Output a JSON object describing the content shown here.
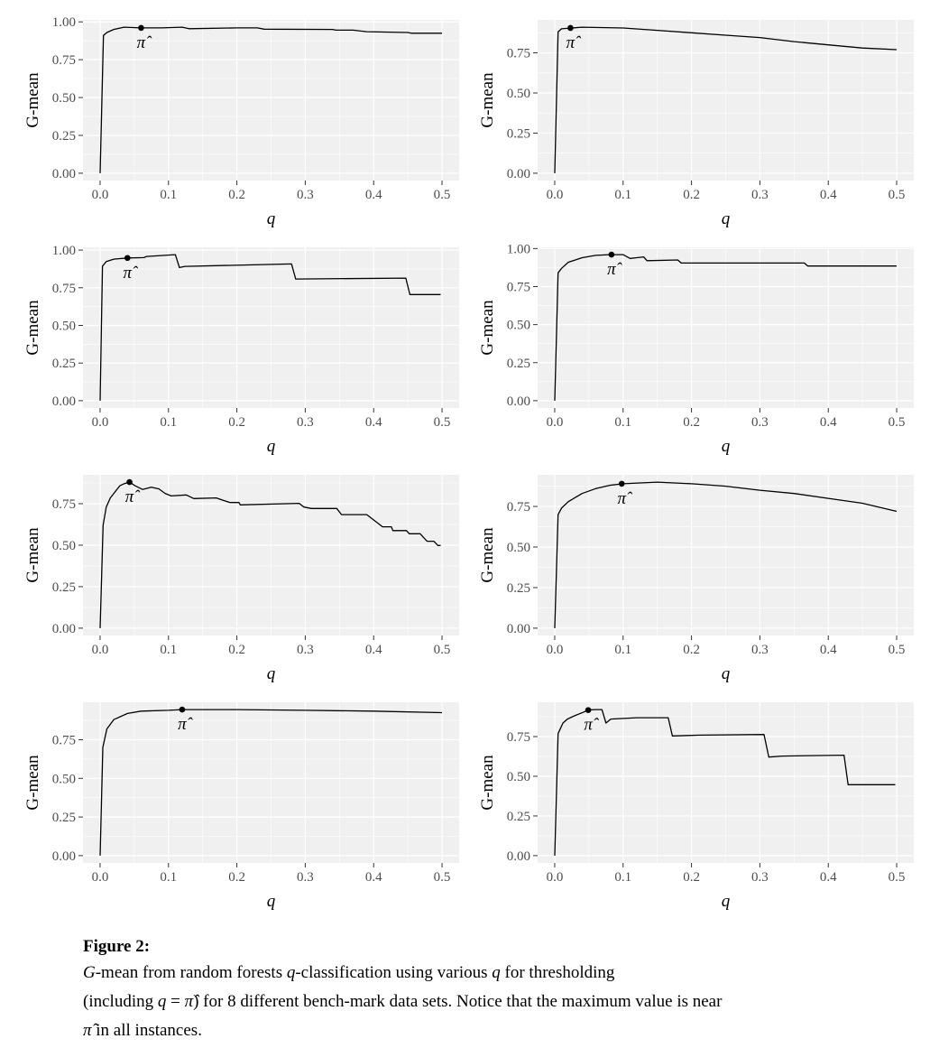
{
  "chart_data": [
    {
      "type": "line",
      "xlabel": "q",
      "ylabel": "G-mean",
      "xlim": [
        0,
        0.5
      ],
      "grid": true,
      "xticks": [
        "0.0",
        "0.1",
        "0.2",
        "0.3",
        "0.4",
        "0.5"
      ],
      "x": [
        0,
        0.005,
        0.01,
        0.02,
        0.035,
        0.06,
        0.09,
        0.12,
        0.13,
        0.2,
        0.23,
        0.24,
        0.34,
        0.345,
        0.37,
        0.39,
        0.45,
        0.455,
        0.5
      ],
      "y": [
        0,
        0.91,
        0.93,
        0.95,
        0.965,
        0.96,
        0.96,
        0.965,
        0.955,
        0.96,
        0.96,
        0.952,
        0.95,
        0.945,
        0.945,
        0.935,
        0.93,
        0.925,
        0.925
      ],
      "annotation": {
        "label": "π̂",
        "x": 0.06,
        "y": 0.96
      }
    },
    {
      "type": "line",
      "xlabel": "q",
      "ylabel": "G-mean",
      "xlim": [
        0,
        0.5
      ],
      "grid": true,
      "xticks": [
        "0.0",
        "0.1",
        "0.2",
        "0.3",
        "0.4",
        "0.5"
      ],
      "x": [
        0,
        0.005,
        0.01,
        0.025,
        0.04,
        0.1,
        0.15,
        0.2,
        0.25,
        0.3,
        0.35,
        0.4,
        0.45,
        0.5
      ],
      "y": [
        0,
        0.88,
        0.9,
        0.905,
        0.91,
        0.905,
        0.89,
        0.875,
        0.86,
        0.845,
        0.82,
        0.8,
        0.78,
        0.77
      ],
      "annotation": {
        "label": "π̂",
        "x": 0.023,
        "y": 0.905
      }
    },
    {
      "type": "line",
      "xlabel": "q",
      "ylabel": "G-mean",
      "xlim": [
        0,
        0.5
      ],
      "grid": true,
      "xticks": [
        "0.0",
        "0.1",
        "0.2",
        "0.3",
        "0.4",
        "0.5"
      ],
      "x": [
        0,
        0.0035,
        0.009,
        0.02,
        0.04,
        0.064,
        0.068,
        0.11,
        0.116,
        0.124,
        0.28,
        0.286,
        0.447,
        0.453,
        0.498
      ],
      "y": [
        0,
        0.894,
        0.924,
        0.94,
        0.948,
        0.95,
        0.958,
        0.97,
        0.884,
        0.892,
        0.908,
        0.808,
        0.814,
        0.705,
        0.705
      ],
      "annotation": {
        "label": "π̂",
        "x": 0.04,
        "y": 0.948
      }
    },
    {
      "type": "line",
      "xlabel": "q",
      "ylabel": "G-mean",
      "xlim": [
        0,
        0.5
      ],
      "grid": true,
      "xticks": [
        "0.0",
        "0.1",
        "0.2",
        "0.3",
        "0.4",
        "0.5"
      ],
      "x": [
        0,
        0.005,
        0.01,
        0.02,
        0.04,
        0.06,
        0.08,
        0.1,
        0.11,
        0.12,
        0.13,
        0.135,
        0.18,
        0.185,
        0.365,
        0.37,
        0.5
      ],
      "y": [
        0,
        0.84,
        0.87,
        0.91,
        0.94,
        0.955,
        0.96,
        0.96,
        0.935,
        0.94,
        0.945,
        0.92,
        0.925,
        0.905,
        0.905,
        0.885,
        0.885
      ],
      "annotation": {
        "label": "π̂",
        "x": 0.083,
        "y": 0.96
      }
    },
    {
      "type": "line",
      "xlabel": "q",
      "ylabel": "G-mean",
      "xlim": [
        0,
        0.5
      ],
      "grid": true,
      "xticks": [
        "0.0",
        "0.1",
        "0.2",
        "0.3",
        "0.4",
        "0.5"
      ],
      "x": [
        0,
        0.0044,
        0.009,
        0.015,
        0.029,
        0.035,
        0.043,
        0.051,
        0.062,
        0.075,
        0.086,
        0.095,
        0.104,
        0.126,
        0.137,
        0.17,
        0.179,
        0.19,
        0.203,
        0.205,
        0.291,
        0.298,
        0.309,
        0.346,
        0.353,
        0.39,
        0.413,
        0.426,
        0.428,
        0.448,
        0.452,
        0.468,
        0.478,
        0.488,
        0.494,
        0.498
      ],
      "y": [
        0,
        0.62,
        0.73,
        0.785,
        0.858,
        0.87,
        0.88,
        0.858,
        0.836,
        0.849,
        0.839,
        0.812,
        0.797,
        0.803,
        0.781,
        0.785,
        0.772,
        0.757,
        0.757,
        0.743,
        0.752,
        0.73,
        0.721,
        0.721,
        0.684,
        0.684,
        0.611,
        0.611,
        0.588,
        0.588,
        0.569,
        0.569,
        0.524,
        0.524,
        0.498,
        0.498
      ],
      "annotation": {
        "label": "π̂",
        "x": 0.043,
        "y": 0.88
      }
    },
    {
      "type": "line",
      "xlabel": "q",
      "ylabel": "G-mean",
      "xlim": [
        0,
        0.5
      ],
      "grid": true,
      "xticks": [
        "0.0",
        "0.1",
        "0.2",
        "0.3",
        "0.4",
        "0.5"
      ],
      "x": [
        0,
        0.005,
        0.01,
        0.02,
        0.04,
        0.06,
        0.08,
        0.1,
        0.15,
        0.2,
        0.25,
        0.3,
        0.35,
        0.4,
        0.45,
        0.5
      ],
      "y": [
        0,
        0.7,
        0.74,
        0.78,
        0.83,
        0.86,
        0.88,
        0.89,
        0.9,
        0.89,
        0.875,
        0.85,
        0.83,
        0.8,
        0.77,
        0.72
      ],
      "annotation": {
        "label": "π̂",
        "x": 0.098,
        "y": 0.89
      }
    },
    {
      "type": "line",
      "xlabel": "q",
      "ylabel": "G-mean",
      "xlim": [
        0,
        0.5
      ],
      "grid": true,
      "xticks": [
        "0.0",
        "0.1",
        "0.2",
        "0.3",
        "0.4",
        "0.5"
      ],
      "x": [
        0,
        0.004,
        0.01,
        0.02,
        0.04,
        0.06,
        0.1,
        0.12,
        0.2,
        0.3,
        0.4,
        0.5
      ],
      "y": [
        0,
        0.7,
        0.82,
        0.88,
        0.92,
        0.935,
        0.94,
        0.945,
        0.945,
        0.94,
        0.935,
        0.925
      ],
      "annotation": {
        "label": "π̂",
        "x": 0.12,
        "y": 0.945
      }
    },
    {
      "type": "line",
      "xlabel": "q",
      "ylabel": "G-mean",
      "xlim": [
        0,
        0.5
      ],
      "grid": true,
      "xticks": [
        "0.0",
        "0.1",
        "0.2",
        "0.3",
        "0.4",
        "0.5"
      ],
      "x": [
        0,
        0.005,
        0.012,
        0.0185,
        0.03,
        0.041,
        0.049,
        0.058,
        0.069,
        0.075,
        0.082,
        0.12,
        0.166,
        0.172,
        0.213,
        0.306,
        0.313,
        0.332,
        0.423,
        0.429,
        0.498
      ],
      "y": [
        0,
        0.769,
        0.835,
        0.86,
        0.883,
        0.902,
        0.917,
        0.92,
        0.92,
        0.835,
        0.86,
        0.869,
        0.869,
        0.754,
        0.759,
        0.763,
        0.621,
        0.627,
        0.633,
        0.447,
        0.447
      ],
      "annotation": {
        "label": "π̂",
        "x": 0.049,
        "y": 0.917
      }
    }
  ],
  "yticks": [
    "0.00",
    "0.25",
    "0.50",
    "0.75",
    "1.00"
  ],
  "colors": {
    "panel_bg": "#f0f0f0",
    "grid": "#ffffff",
    "line": "#000000",
    "tick_text": "#4d4d4d"
  },
  "caption": {
    "title": "Figure 2:",
    "lines": [
      [
        {
          "t": "G",
          "i": true
        },
        {
          "t": "-mean from random forests "
        },
        {
          "t": "q",
          "i": true
        },
        {
          "t": "-classification using various "
        },
        {
          "t": "q",
          "i": true
        },
        {
          "t": " for thresholding"
        }
      ],
      [
        {
          "t": "(including "
        },
        {
          "t": "q",
          "i": true
        },
        {
          "t": " = "
        },
        {
          "t": "π̂",
          "i": true
        },
        {
          "t": ") for 8 different bench-mark data sets. Notice that the maximum value is near"
        }
      ],
      [
        {
          "t": "π̂",
          "i": true
        },
        {
          "t": " in all instances."
        }
      ]
    ]
  }
}
